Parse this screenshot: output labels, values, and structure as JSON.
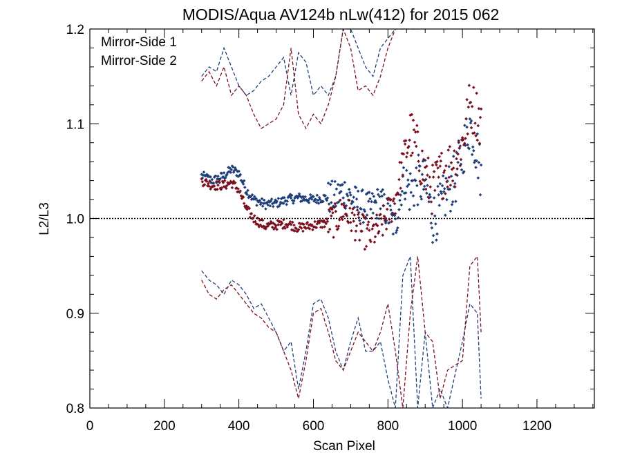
{
  "chart_data": {
    "type": "scatter",
    "title": "MODIS/Aqua AV124b nLw(412) for 2015 062",
    "xlabel": "Scan Pixel",
    "ylabel": "L2/L3",
    "xlim": [
      0,
      1354
    ],
    "ylim": [
      0.8,
      1.2
    ],
    "x_ticks": [
      0,
      200,
      400,
      600,
      800,
      1000,
      1200
    ],
    "x_tick_labels": [
      "0",
      "200",
      "400",
      "600",
      "800",
      "1000",
      "1200"
    ],
    "y_ticks": [
      0.8,
      0.9,
      1.0,
      1.1,
      1.2
    ],
    "y_tick_labels": [
      "0.8",
      "0.9",
      "1.0",
      "1.1",
      "1.2"
    ],
    "reference_line": 1.0,
    "legend_position": "top-left",
    "series": [
      {
        "name": "Mirror-Side 1",
        "color": "#1f3f7a",
        "mean": [
          [
            300,
            1.045
          ],
          [
            330,
            1.04
          ],
          [
            360,
            1.045
          ],
          [
            380,
            1.052
          ],
          [
            400,
            1.048
          ],
          [
            420,
            1.03
          ],
          [
            440,
            1.02
          ],
          [
            470,
            1.015
          ],
          [
            500,
            1.016
          ],
          [
            530,
            1.02
          ],
          [
            560,
            1.022
          ],
          [
            600,
            1.02
          ],
          [
            630,
            1.022
          ],
          [
            660,
            1.022
          ],
          [
            680,
            1.03
          ],
          [
            700,
            1.022
          ],
          [
            720,
            1.015
          ],
          [
            750,
            1.01
          ],
          [
            780,
            1.018
          ],
          [
            800,
            1.005
          ],
          [
            820,
            0.99
          ],
          [
            840,
            1.04
          ],
          [
            860,
            1.03
          ],
          [
            880,
            1.04
          ],
          [
            900,
            1.035
          ],
          [
            920,
            1.0
          ],
          [
            940,
            1.01
          ],
          [
            960,
            1.03
          ],
          [
            980,
            1.04
          ],
          [
            1000,
            1.07
          ],
          [
            1020,
            1.1
          ],
          [
            1040,
            1.07
          ],
          [
            1050,
            1.045
          ]
        ],
        "upper": [
          [
            300,
            1.15
          ],
          [
            320,
            1.16
          ],
          [
            340,
            1.155
          ],
          [
            360,
            1.18
          ],
          [
            380,
            1.16
          ],
          [
            400,
            1.14
          ],
          [
            420,
            1.13
          ],
          [
            440,
            1.135
          ],
          [
            460,
            1.145
          ],
          [
            480,
            1.15
          ],
          [
            500,
            1.16
          ],
          [
            520,
            1.17
          ],
          [
            540,
            1.13
          ],
          [
            560,
            1.175
          ],
          [
            580,
            1.165
          ],
          [
            600,
            1.13
          ],
          [
            620,
            1.14
          ],
          [
            640,
            1.13
          ],
          [
            660,
            1.15
          ],
          [
            680,
            1.2
          ],
          [
            700,
            1.2
          ],
          [
            720,
            1.18
          ],
          [
            740,
            1.16
          ],
          [
            760,
            1.15
          ],
          [
            780,
            1.18
          ],
          [
            800,
            1.19
          ],
          [
            820,
            1.2
          ],
          [
            850,
            1.2
          ],
          [
            880,
            1.2
          ],
          [
            910,
            1.2
          ]
        ],
        "lower": [
          [
            300,
            0.945
          ],
          [
            320,
            0.935
          ],
          [
            340,
            0.93
          ],
          [
            360,
            0.92
          ],
          [
            380,
            0.935
          ],
          [
            400,
            0.93
          ],
          [
            420,
            0.92
          ],
          [
            440,
            0.905
          ],
          [
            460,
            0.91
          ],
          [
            480,
            0.895
          ],
          [
            500,
            0.88
          ],
          [
            520,
            0.86
          ],
          [
            540,
            0.87
          ],
          [
            560,
            0.82
          ],
          [
            580,
            0.86
          ],
          [
            600,
            0.91
          ],
          [
            620,
            0.915
          ],
          [
            640,
            0.895
          ],
          [
            660,
            0.86
          ],
          [
            680,
            0.84
          ],
          [
            700,
            0.87
          ],
          [
            720,
            0.895
          ],
          [
            740,
            0.86
          ],
          [
            760,
            0.86
          ],
          [
            780,
            0.87
          ],
          [
            800,
            0.83
          ],
          [
            820,
            0.8
          ],
          [
            840,
            0.94
          ],
          [
            860,
            0.96
          ],
          [
            880,
            0.8
          ],
          [
            900,
            0.88
          ],
          [
            920,
            0.8
          ],
          [
            940,
            0.82
          ],
          [
            960,
            0.8
          ],
          [
            1000,
            0.87
          ],
          [
            1020,
            0.91
          ],
          [
            1040,
            0.9
          ],
          [
            1050,
            0.81
          ]
        ]
      },
      {
        "name": "Mirror-Side 2",
        "color": "#7a1020",
        "mean": [
          [
            300,
            1.04
          ],
          [
            330,
            1.035
          ],
          [
            360,
            1.035
          ],
          [
            380,
            1.038
          ],
          [
            400,
            1.03
          ],
          [
            420,
            1.01
          ],
          [
            440,
            1.0
          ],
          [
            470,
            0.992
          ],
          [
            500,
            0.993
          ],
          [
            530,
            0.995
          ],
          [
            560,
            0.99
          ],
          [
            600,
            0.993
          ],
          [
            630,
            0.995
          ],
          [
            660,
            0.998
          ],
          [
            680,
            1.01
          ],
          [
            700,
            1.002
          ],
          [
            720,
            0.99
          ],
          [
            750,
            0.982
          ],
          [
            780,
            0.99
          ],
          [
            800,
            1.005
          ],
          [
            820,
            1.02
          ],
          [
            840,
            1.06
          ],
          [
            860,
            1.09
          ],
          [
            880,
            1.07
          ],
          [
            900,
            1.045
          ],
          [
            920,
            1.03
          ],
          [
            940,
            1.045
          ],
          [
            960,
            1.055
          ],
          [
            980,
            1.06
          ],
          [
            1000,
            1.08
          ],
          [
            1020,
            1.12
          ],
          [
            1040,
            1.11
          ],
          [
            1050,
            1.1
          ]
        ],
        "upper": [
          [
            300,
            1.145
          ],
          [
            320,
            1.155
          ],
          [
            340,
            1.14
          ],
          [
            360,
            1.16
          ],
          [
            380,
            1.13
          ],
          [
            400,
            1.14
          ],
          [
            420,
            1.13
          ],
          [
            440,
            1.11
          ],
          [
            460,
            1.095
          ],
          [
            480,
            1.1
          ],
          [
            500,
            1.105
          ],
          [
            520,
            1.12
          ],
          [
            540,
            1.18
          ],
          [
            560,
            1.11
          ],
          [
            580,
            1.095
          ],
          [
            600,
            1.11
          ],
          [
            620,
            1.1
          ],
          [
            640,
            1.12
          ],
          [
            660,
            1.15
          ],
          [
            680,
            1.2
          ],
          [
            700,
            1.18
          ],
          [
            720,
            1.135
          ],
          [
            740,
            1.14
          ],
          [
            760,
            1.13
          ],
          [
            780,
            1.15
          ],
          [
            800,
            1.18
          ],
          [
            820,
            1.2
          ],
          [
            850,
            1.2
          ],
          [
            880,
            1.2
          ]
        ],
        "lower": [
          [
            300,
            0.935
          ],
          [
            320,
            0.92
          ],
          [
            340,
            0.915
          ],
          [
            360,
            0.925
          ],
          [
            380,
            0.93
          ],
          [
            400,
            0.92
          ],
          [
            420,
            0.91
          ],
          [
            440,
            0.9
          ],
          [
            460,
            0.895
          ],
          [
            480,
            0.885
          ],
          [
            500,
            0.88
          ],
          [
            520,
            0.86
          ],
          [
            540,
            0.84
          ],
          [
            560,
            0.81
          ],
          [
            580,
            0.85
          ],
          [
            600,
            0.9
          ],
          [
            620,
            0.905
          ],
          [
            640,
            0.88
          ],
          [
            660,
            0.85
          ],
          [
            680,
            0.84
          ],
          [
            700,
            0.86
          ],
          [
            720,
            0.88
          ],
          [
            740,
            0.87
          ],
          [
            760,
            0.86
          ],
          [
            780,
            0.88
          ],
          [
            800,
            0.91
          ],
          [
            820,
            0.86
          ],
          [
            840,
            0.8
          ],
          [
            860,
            0.9
          ],
          [
            880,
            0.96
          ],
          [
            900,
            0.88
          ],
          [
            920,
            0.87
          ],
          [
            940,
            0.81
          ],
          [
            960,
            0.84
          ],
          [
            1000,
            0.85
          ],
          [
            1020,
            0.95
          ],
          [
            1040,
            0.96
          ],
          [
            1050,
            0.88
          ]
        ]
      }
    ]
  }
}
